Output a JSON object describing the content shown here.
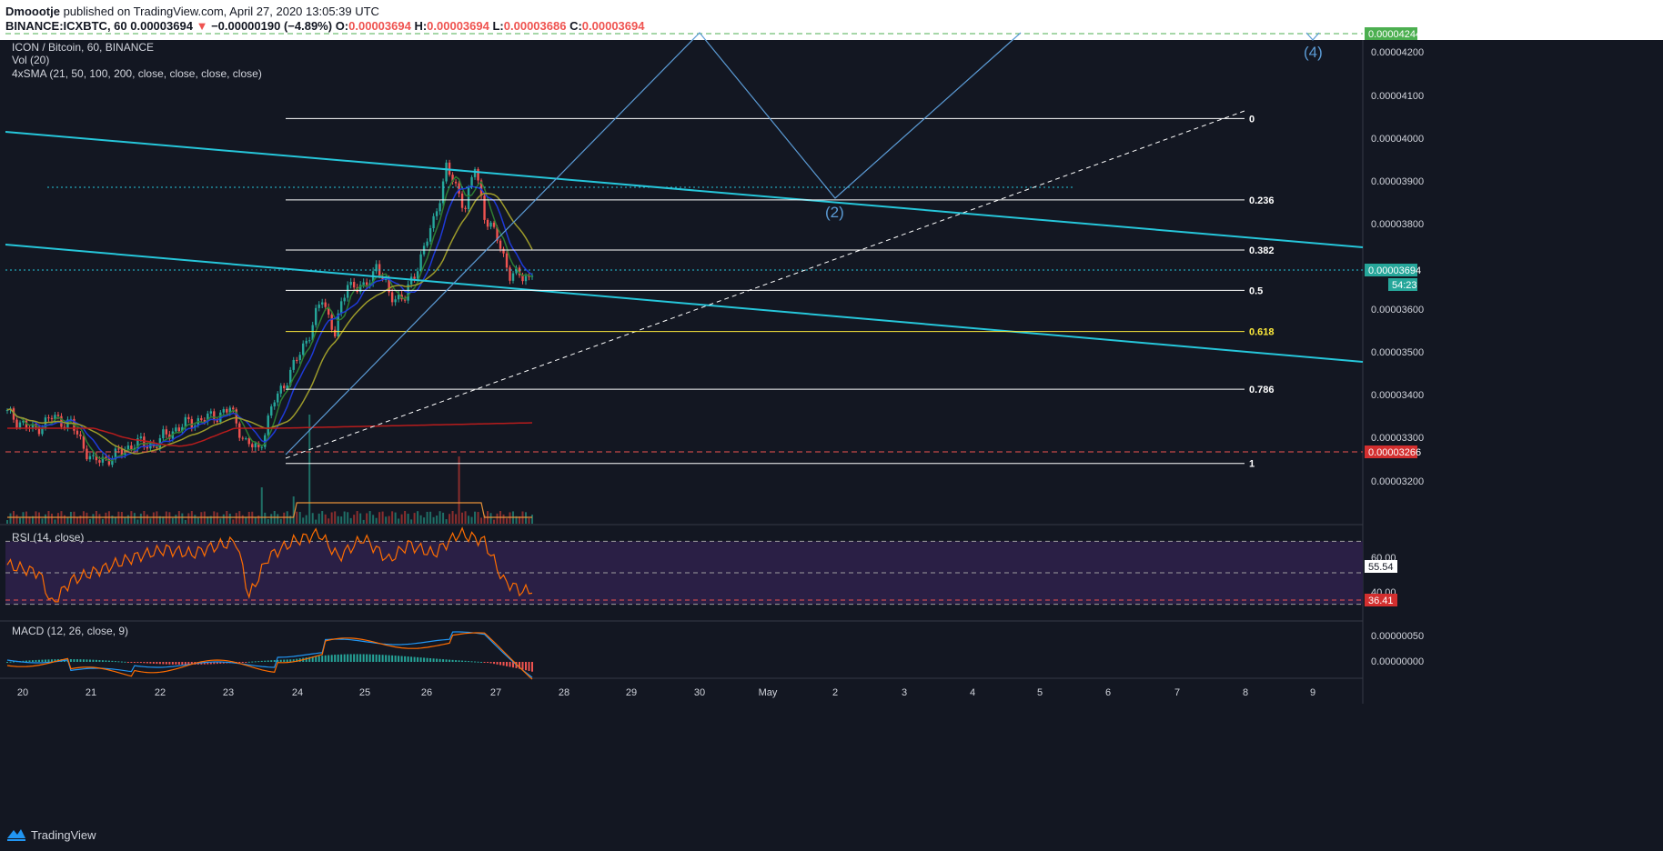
{
  "header": {
    "author": "Dmoootje",
    "published_text": "published on TradingView.com, April 27, 2020 13:05:39 UTC",
    "symbol": "BINANCE:ICXBTC, 60",
    "last": "0.00003694",
    "change_arrow": "▼",
    "change": "−0.00000190 (−4.89%)",
    "o_label": "O:",
    "o_value": "0.00003694",
    "h_label": "H:",
    "h_value": "0.00003694",
    "l_label": "L:",
    "l_value": "0.00003686",
    "c_label": "C:",
    "c_value": "0.00003694"
  },
  "legend": {
    "title": "ICON / Bitcoin, 60, BINANCE",
    "vol": "Vol (20)",
    "sma": "4xSMA (21, 50, 100, 200, close, close, close, close)",
    "rsi": "RSI (14, close)",
    "macd": "MACD (12, 26, close, 9)"
  },
  "footer": {
    "brand": "TradingView",
    "logo_icon": "tradingview-logo-icon"
  },
  "colors": {
    "bg": "#131722",
    "up": "#26a69a",
    "down": "#ef5350",
    "channel": "#26c6da",
    "sma21": "#2e7d32",
    "sma50": "#1e3ad8",
    "sma100": "#9c9a2a",
    "sma200": "#b71c1c",
    "fib": "#ffffff",
    "fib618": "#ffeb3b",
    "wave": "#5b9bd5",
    "rsi": "#ff6d00",
    "rsi_band": "#2a1f45"
  },
  "chart_data": [
    {
      "type": "candlestick",
      "title": "ICON / Bitcoin, 60, BINANCE",
      "x_ticks": [
        "20",
        "21",
        "22",
        "23",
        "24",
        "25",
        "26",
        "27",
        "28",
        "29",
        "30",
        "May",
        "2",
        "3",
        "4",
        "5",
        "6",
        "7",
        "8",
        "9"
      ],
      "y_ticks": [
        "0.00004200",
        "0.00004100",
        "0.00004000",
        "0.00003900",
        "0.00003800",
        "0.00003600",
        "0.00003500",
        "0.00003400",
        "0.00003300",
        "0.00003200"
      ],
      "ylim": [
        3.11e-05,
        4.25e-05
      ],
      "last_price_label": "0.00003694",
      "countdown_label": "54:23",
      "support_label": "0.00003266",
      "top_label": "0.00004244",
      "price_anchors": [
        [
          0,
          3.37e-05
        ],
        [
          8,
          3.33e-05
        ],
        [
          14,
          3.36e-05
        ],
        [
          20,
          3.345e-05
        ],
        [
          27,
          3.255e-05
        ],
        [
          34,
          3.27e-05
        ],
        [
          40,
          3.3e-05
        ],
        [
          46,
          3.295e-05
        ],
        [
          52,
          3.33e-05
        ],
        [
          58,
          3.35e-05
        ],
        [
          64,
          3.36e-05
        ],
        [
          70,
          3.38e-05
        ],
        [
          75,
          3.3e-05
        ],
        [
          79,
          3.285e-05
        ],
        [
          84,
          3.4e-05
        ],
        [
          90,
          3.48e-05
        ],
        [
          95,
          3.56e-05
        ],
        [
          99,
          3.64e-05
        ],
        [
          103,
          3.56e-05
        ],
        [
          107,
          3.68e-05
        ],
        [
          112,
          3.66e-05
        ],
        [
          116,
          3.72e-05
        ],
        [
          120,
          3.65e-05
        ],
        [
          125,
          3.64e-05
        ],
        [
          129,
          3.72e-05
        ],
        [
          134,
          3.82e-05
        ],
        [
          138,
          3.95e-05
        ],
        [
          141,
          3.9e-05
        ],
        [
          144,
          3.86e-05
        ],
        [
          147,
          3.95e-05
        ],
        [
          150,
          3.84e-05
        ],
        [
          154,
          3.78e-05
        ],
        [
          158,
          3.7e-05
        ],
        [
          162,
          3.69e-05
        ],
        [
          165,
          3.694e-05
        ]
      ],
      "fib_levels": [
        {
          "label": "0",
          "value": 4.065e-05
        },
        {
          "label": "0.236",
          "value": 3.873e-05
        },
        {
          "label": "0.382",
          "value": 3.755e-05
        },
        {
          "label": "0.5",
          "value": 3.66e-05
        },
        {
          "label": "0.618",
          "value": 3.563e-05
        },
        {
          "label": "0.786",
          "value": 3.427e-05
        },
        {
          "label": "1",
          "value": 3.252e-05
        }
      ],
      "wave_labels": [
        "(2)",
        "(4)"
      ]
    },
    {
      "type": "line",
      "title": "RSI (14, close)",
      "ylim": [
        20,
        80
      ],
      "levels": [
        70,
        50,
        30
      ],
      "tick_labels": [
        "60.00",
        "40.00"
      ],
      "current_label": "55.54",
      "marker_label": "36.41",
      "values_anchor": [
        [
          0,
          55
        ],
        [
          10,
          50
        ],
        [
          14,
          30
        ],
        [
          20,
          45
        ],
        [
          40,
          60
        ],
        [
          50,
          65
        ],
        [
          58,
          62
        ],
        [
          64,
          66
        ],
        [
          72,
          70
        ],
        [
          76,
          35
        ],
        [
          82,
          60
        ],
        [
          90,
          70
        ],
        [
          98,
          75
        ],
        [
          104,
          60
        ],
        [
          112,
          72
        ],
        [
          120,
          58
        ],
        [
          126,
          68
        ],
        [
          134,
          62
        ],
        [
          142,
          75
        ],
        [
          150,
          70
        ],
        [
          156,
          45
        ],
        [
          162,
          38
        ],
        [
          166,
          40
        ]
      ]
    },
    {
      "type": "bar",
      "title": "MACD (12, 26, close, 9)",
      "tick_labels": [
        "0.00000050",
        "0.00000000"
      ]
    }
  ]
}
